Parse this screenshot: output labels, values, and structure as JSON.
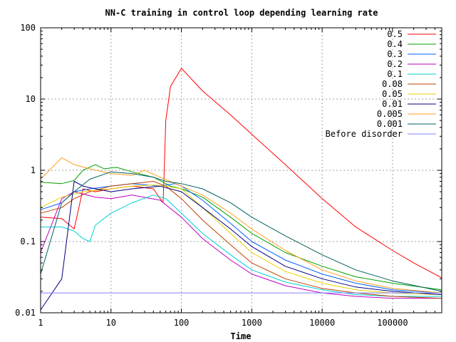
{
  "chart_data": {
    "type": "line",
    "title": "NN-C training in control loop depending learning rate",
    "xlabel": "Time",
    "ylabel": "",
    "x_scale": "log",
    "y_scale": "log",
    "xlim": [
      1,
      500000
    ],
    "ylim": [
      0.01,
      100
    ],
    "grid": true,
    "legend_position": "top-right",
    "x_ticks": [
      {
        "v": 1,
        "label": "1"
      },
      {
        "v": 10,
        "label": "10"
      },
      {
        "v": 100,
        "label": "100"
      },
      {
        "v": 1000,
        "label": "1000"
      },
      {
        "v": 10000,
        "label": "10000"
      },
      {
        "v": 100000,
        "label": "100000"
      }
    ],
    "y_ticks": [
      {
        "v": 0.01,
        "label": "0.01"
      },
      {
        "v": 0.1,
        "label": "0.1"
      },
      {
        "v": 1,
        "label": "1"
      },
      {
        "v": 10,
        "label": "10"
      },
      {
        "v": 100,
        "label": "100"
      }
    ],
    "series": [
      {
        "name": "0.5",
        "color": "#ff0000",
        "points": [
          [
            1,
            0.22
          ],
          [
            2,
            0.21
          ],
          [
            3,
            0.15
          ],
          [
            4,
            0.55
          ],
          [
            6,
            0.5
          ],
          [
            10,
            0.55
          ],
          [
            20,
            0.6
          ],
          [
            40,
            0.55
          ],
          [
            55,
            0.35
          ],
          [
            57,
            1.0
          ],
          [
            60,
            5
          ],
          [
            70,
            15
          ],
          [
            100,
            27
          ],
          [
            200,
            13
          ],
          [
            500,
            6
          ],
          [
            1000,
            3.2
          ],
          [
            3000,
            1.2
          ],
          [
            10000,
            0.4
          ],
          [
            30000,
            0.16
          ],
          [
            100000,
            0.075
          ],
          [
            200000,
            0.05
          ],
          [
            500000,
            0.031
          ]
        ]
      },
      {
        "name": "0.4",
        "color": "#00a000",
        "points": [
          [
            1,
            0.68
          ],
          [
            2,
            0.65
          ],
          [
            3,
            0.72
          ],
          [
            4,
            1.0
          ],
          [
            6,
            1.2
          ],
          [
            8,
            1.05
          ],
          [
            12,
            1.1
          ],
          [
            20,
            0.95
          ],
          [
            40,
            0.8
          ],
          [
            70,
            0.6
          ],
          [
            100,
            0.55
          ],
          [
            200,
            0.42
          ],
          [
            500,
            0.22
          ],
          [
            1000,
            0.13
          ],
          [
            3000,
            0.07
          ],
          [
            10000,
            0.045
          ],
          [
            30000,
            0.032
          ],
          [
            100000,
            0.026
          ],
          [
            500000,
            0.021
          ]
        ]
      },
      {
        "name": "0.3",
        "color": "#0060ff",
        "points": [
          [
            1,
            0.28
          ],
          [
            2,
            0.35
          ],
          [
            3,
            0.5
          ],
          [
            5,
            0.55
          ],
          [
            10,
            0.6
          ],
          [
            20,
            0.65
          ],
          [
            50,
            0.6
          ],
          [
            80,
            0.65
          ],
          [
            100,
            0.6
          ],
          [
            200,
            0.38
          ],
          [
            500,
            0.18
          ],
          [
            1000,
            0.1
          ],
          [
            3000,
            0.055
          ],
          [
            10000,
            0.035
          ],
          [
            30000,
            0.026
          ],
          [
            100000,
            0.021
          ],
          [
            500000,
            0.019
          ]
        ]
      },
      {
        "name": "0.2",
        "color": "#c000c0",
        "points": [
          [
            1,
            0.07
          ],
          [
            2,
            0.4
          ],
          [
            3,
            0.5
          ],
          [
            6,
            0.42
          ],
          [
            10,
            0.4
          ],
          [
            20,
            0.45
          ],
          [
            50,
            0.38
          ],
          [
            100,
            0.22
          ],
          [
            200,
            0.11
          ],
          [
            500,
            0.055
          ],
          [
            1000,
            0.035
          ],
          [
            3000,
            0.024
          ],
          [
            10000,
            0.019
          ],
          [
            30000,
            0.017
          ],
          [
            100000,
            0.016
          ],
          [
            500000,
            0.016
          ]
        ]
      },
      {
        "name": "0.1",
        "color": "#00d0d0",
        "points": [
          [
            1,
            0.16
          ],
          [
            2,
            0.16
          ],
          [
            3,
            0.14
          ],
          [
            4,
            0.11
          ],
          [
            5,
            0.1
          ],
          [
            6,
            0.17
          ],
          [
            10,
            0.25
          ],
          [
            20,
            0.35
          ],
          [
            40,
            0.45
          ],
          [
            60,
            0.4
          ],
          [
            100,
            0.25
          ],
          [
            200,
            0.13
          ],
          [
            500,
            0.065
          ],
          [
            1000,
            0.04
          ],
          [
            3000,
            0.027
          ],
          [
            10000,
            0.021
          ],
          [
            30000,
            0.018
          ],
          [
            100000,
            0.017
          ],
          [
            500000,
            0.017
          ]
        ]
      },
      {
        "name": "0.08",
        "color": "#c04000",
        "points": [
          [
            1,
            0.25
          ],
          [
            2,
            0.3
          ],
          [
            3,
            0.4
          ],
          [
            5,
            0.5
          ],
          [
            10,
            0.6
          ],
          [
            20,
            0.65
          ],
          [
            40,
            0.7
          ],
          [
            60,
            0.6
          ],
          [
            100,
            0.4
          ],
          [
            200,
            0.2
          ],
          [
            500,
            0.09
          ],
          [
            1000,
            0.05
          ],
          [
            3000,
            0.03
          ],
          [
            10000,
            0.022
          ],
          [
            30000,
            0.019
          ],
          [
            100000,
            0.017
          ],
          [
            500000,
            0.016
          ]
        ]
      },
      {
        "name": "0.05",
        "color": "#e8d000",
        "points": [
          [
            1,
            0.3
          ],
          [
            2,
            0.42
          ],
          [
            4,
            0.5
          ],
          [
            10,
            0.55
          ],
          [
            20,
            0.6
          ],
          [
            40,
            0.62
          ],
          [
            60,
            0.6
          ],
          [
            100,
            0.55
          ],
          [
            200,
            0.3
          ],
          [
            500,
            0.13
          ],
          [
            1000,
            0.07
          ],
          [
            3000,
            0.038
          ],
          [
            10000,
            0.026
          ],
          [
            30000,
            0.021
          ],
          [
            100000,
            0.019
          ],
          [
            500000,
            0.018
          ]
        ]
      },
      {
        "name": "0.01",
        "color": "#000080",
        "points": [
          [
            1,
            0.011
          ],
          [
            2,
            0.03
          ],
          [
            3,
            0.7
          ],
          [
            4,
            0.6
          ],
          [
            6,
            0.55
          ],
          [
            10,
            0.5
          ],
          [
            20,
            0.55
          ],
          [
            50,
            0.6
          ],
          [
            100,
            0.5
          ],
          [
            200,
            0.3
          ],
          [
            500,
            0.15
          ],
          [
            1000,
            0.085
          ],
          [
            3000,
            0.045
          ],
          [
            10000,
            0.03
          ],
          [
            30000,
            0.023
          ],
          [
            100000,
            0.02
          ],
          [
            500000,
            0.018
          ]
        ]
      },
      {
        "name": "0.005",
        "color": "#ffa020",
        "points": [
          [
            1,
            0.75
          ],
          [
            2,
            1.5
          ],
          [
            3,
            1.2
          ],
          [
            5,
            1.05
          ],
          [
            10,
            0.9
          ],
          [
            20,
            0.85
          ],
          [
            30,
            1.0
          ],
          [
            50,
            0.8
          ],
          [
            100,
            0.6
          ],
          [
            200,
            0.45
          ],
          [
            500,
            0.25
          ],
          [
            1000,
            0.15
          ],
          [
            3000,
            0.075
          ],
          [
            10000,
            0.04
          ],
          [
            30000,
            0.028
          ],
          [
            100000,
            0.022
          ],
          [
            500000,
            0.019
          ]
        ]
      },
      {
        "name": "0.001",
        "color": "#006060",
        "points": [
          [
            1,
            0.035
          ],
          [
            2,
            0.35
          ],
          [
            3,
            0.5
          ],
          [
            5,
            0.75
          ],
          [
            10,
            0.95
          ],
          [
            20,
            0.9
          ],
          [
            40,
            0.8
          ],
          [
            60,
            0.7
          ],
          [
            100,
            0.65
          ],
          [
            200,
            0.55
          ],
          [
            500,
            0.35
          ],
          [
            1000,
            0.22
          ],
          [
            3000,
            0.12
          ],
          [
            10000,
            0.065
          ],
          [
            30000,
            0.04
          ],
          [
            100000,
            0.028
          ],
          [
            500000,
            0.02
          ]
        ]
      },
      {
        "name": "Before disorder",
        "color": "#8080ff",
        "points": [
          [
            1,
            0.019
          ],
          [
            500000,
            0.019
          ]
        ]
      }
    ]
  }
}
